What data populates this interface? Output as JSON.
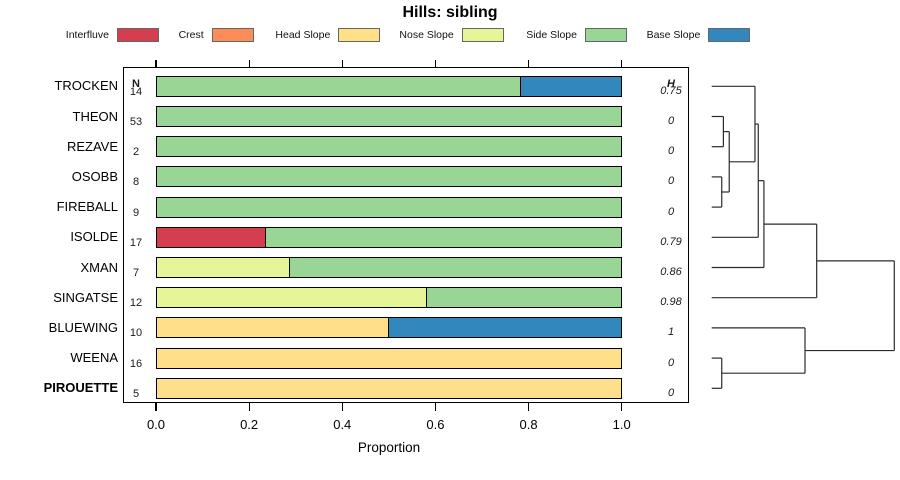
{
  "title": "Hills: sibling",
  "chart_data": {
    "type": "stacked_bar_with_dendrogram",
    "title": "Hills: sibling",
    "xlabel": "Proportion",
    "xlim": [
      0,
      1
    ],
    "x_ticks": [
      "0.0",
      "0.2",
      "0.4",
      "0.6",
      "0.8",
      "1.0"
    ],
    "col_headers": {
      "n": "N",
      "h": "H"
    },
    "legend": [
      {
        "label": "Interfluve",
        "color": "#D53E4F"
      },
      {
        "label": "Crest",
        "color": "#FC8D59"
      },
      {
        "label": "Head Slope",
        "color": "#FEE08B"
      },
      {
        "label": "Nose Slope",
        "color": "#E6F598"
      },
      {
        "label": "Side Slope",
        "color": "#99D594"
      },
      {
        "label": "Base Slope",
        "color": "#3288BD"
      }
    ],
    "palette": {
      "Interfluve": "#D53E4F",
      "Crest": "#FC8D59",
      "Head Slope": "#FEE08B",
      "Nose Slope": "#E6F598",
      "Side Slope": "#99D594",
      "Base Slope": "#3288BD"
    },
    "rows": [
      {
        "name": "TROCKEN",
        "n": "14",
        "h": "0.75",
        "bold": false,
        "segments": [
          {
            "class": "Side Slope",
            "value": 0.786
          },
          {
            "class": "Base Slope",
            "value": 0.214
          }
        ]
      },
      {
        "name": "THEON",
        "n": "53",
        "h": "0",
        "bold": false,
        "segments": [
          {
            "class": "Side Slope",
            "value": 1
          }
        ]
      },
      {
        "name": "REZAVE",
        "n": "2",
        "h": "0",
        "bold": false,
        "segments": [
          {
            "class": "Side Slope",
            "value": 1
          }
        ]
      },
      {
        "name": "OSOBB",
        "n": "8",
        "h": "0",
        "bold": false,
        "segments": [
          {
            "class": "Side Slope",
            "value": 1
          }
        ]
      },
      {
        "name": "FIREBALL",
        "n": "9",
        "h": "0",
        "bold": false,
        "segments": [
          {
            "class": "Side Slope",
            "value": 1
          }
        ]
      },
      {
        "name": "ISOLDE",
        "n": "17",
        "h": "0.79",
        "bold": false,
        "segments": [
          {
            "class": "Interfluve",
            "value": 0.235
          },
          {
            "class": "Side Slope",
            "value": 0.765
          }
        ]
      },
      {
        "name": "XMAN",
        "n": "7",
        "h": "0.86",
        "bold": false,
        "segments": [
          {
            "class": "Nose Slope",
            "value": 0.286
          },
          {
            "class": "Side Slope",
            "value": 0.714
          }
        ]
      },
      {
        "name": "SINGATSE",
        "n": "12",
        "h": "0.98",
        "bold": false,
        "segments": [
          {
            "class": "Nose Slope",
            "value": 0.583
          },
          {
            "class": "Side Slope",
            "value": 0.417
          }
        ]
      },
      {
        "name": "BLUEWING",
        "n": "10",
        "h": "1",
        "bold": false,
        "segments": [
          {
            "class": "Head Slope",
            "value": 0.5
          },
          {
            "class": "Base Slope",
            "value": 0.5
          }
        ]
      },
      {
        "name": "WEENA",
        "n": "16",
        "h": "0",
        "bold": false,
        "segments": [
          {
            "class": "Head Slope",
            "value": 1
          }
        ]
      },
      {
        "name": "PIROUETTE",
        "n": "5",
        "h": "0",
        "bold": true,
        "segments": [
          {
            "class": "Head Slope",
            "value": 1
          }
        ]
      }
    ],
    "dendrogram": {
      "leaves": [
        "TROCKEN",
        "THEON",
        "REZAVE",
        "OSOBB",
        "FIREBALL",
        "ISOLDE",
        "XMAN",
        "SINGATSE",
        "BLUEWING",
        "WEENA",
        "PIROUETTE"
      ],
      "merges": [
        {
          "a": "L1",
          "b": "L2",
          "h": 0.064
        },
        {
          "a": "L3",
          "b": "L4",
          "h": 0.055
        },
        {
          "a": "M0",
          "b": "M1",
          "h": 0.096
        },
        {
          "a": "L0",
          "b": "M2",
          "h": 0.237
        },
        {
          "a": "M3",
          "b": "L5",
          "h": 0.255
        },
        {
          "a": "M4",
          "b": "L6",
          "h": 0.286
        },
        {
          "a": "M5",
          "b": "L7",
          "h": 0.575
        },
        {
          "a": "L9",
          "b": "L10",
          "h": 0.055
        },
        {
          "a": "L8",
          "b": "M7",
          "h": 0.511
        },
        {
          "a": "M6",
          "b": "M8",
          "h": 1.0
        }
      ]
    }
  }
}
